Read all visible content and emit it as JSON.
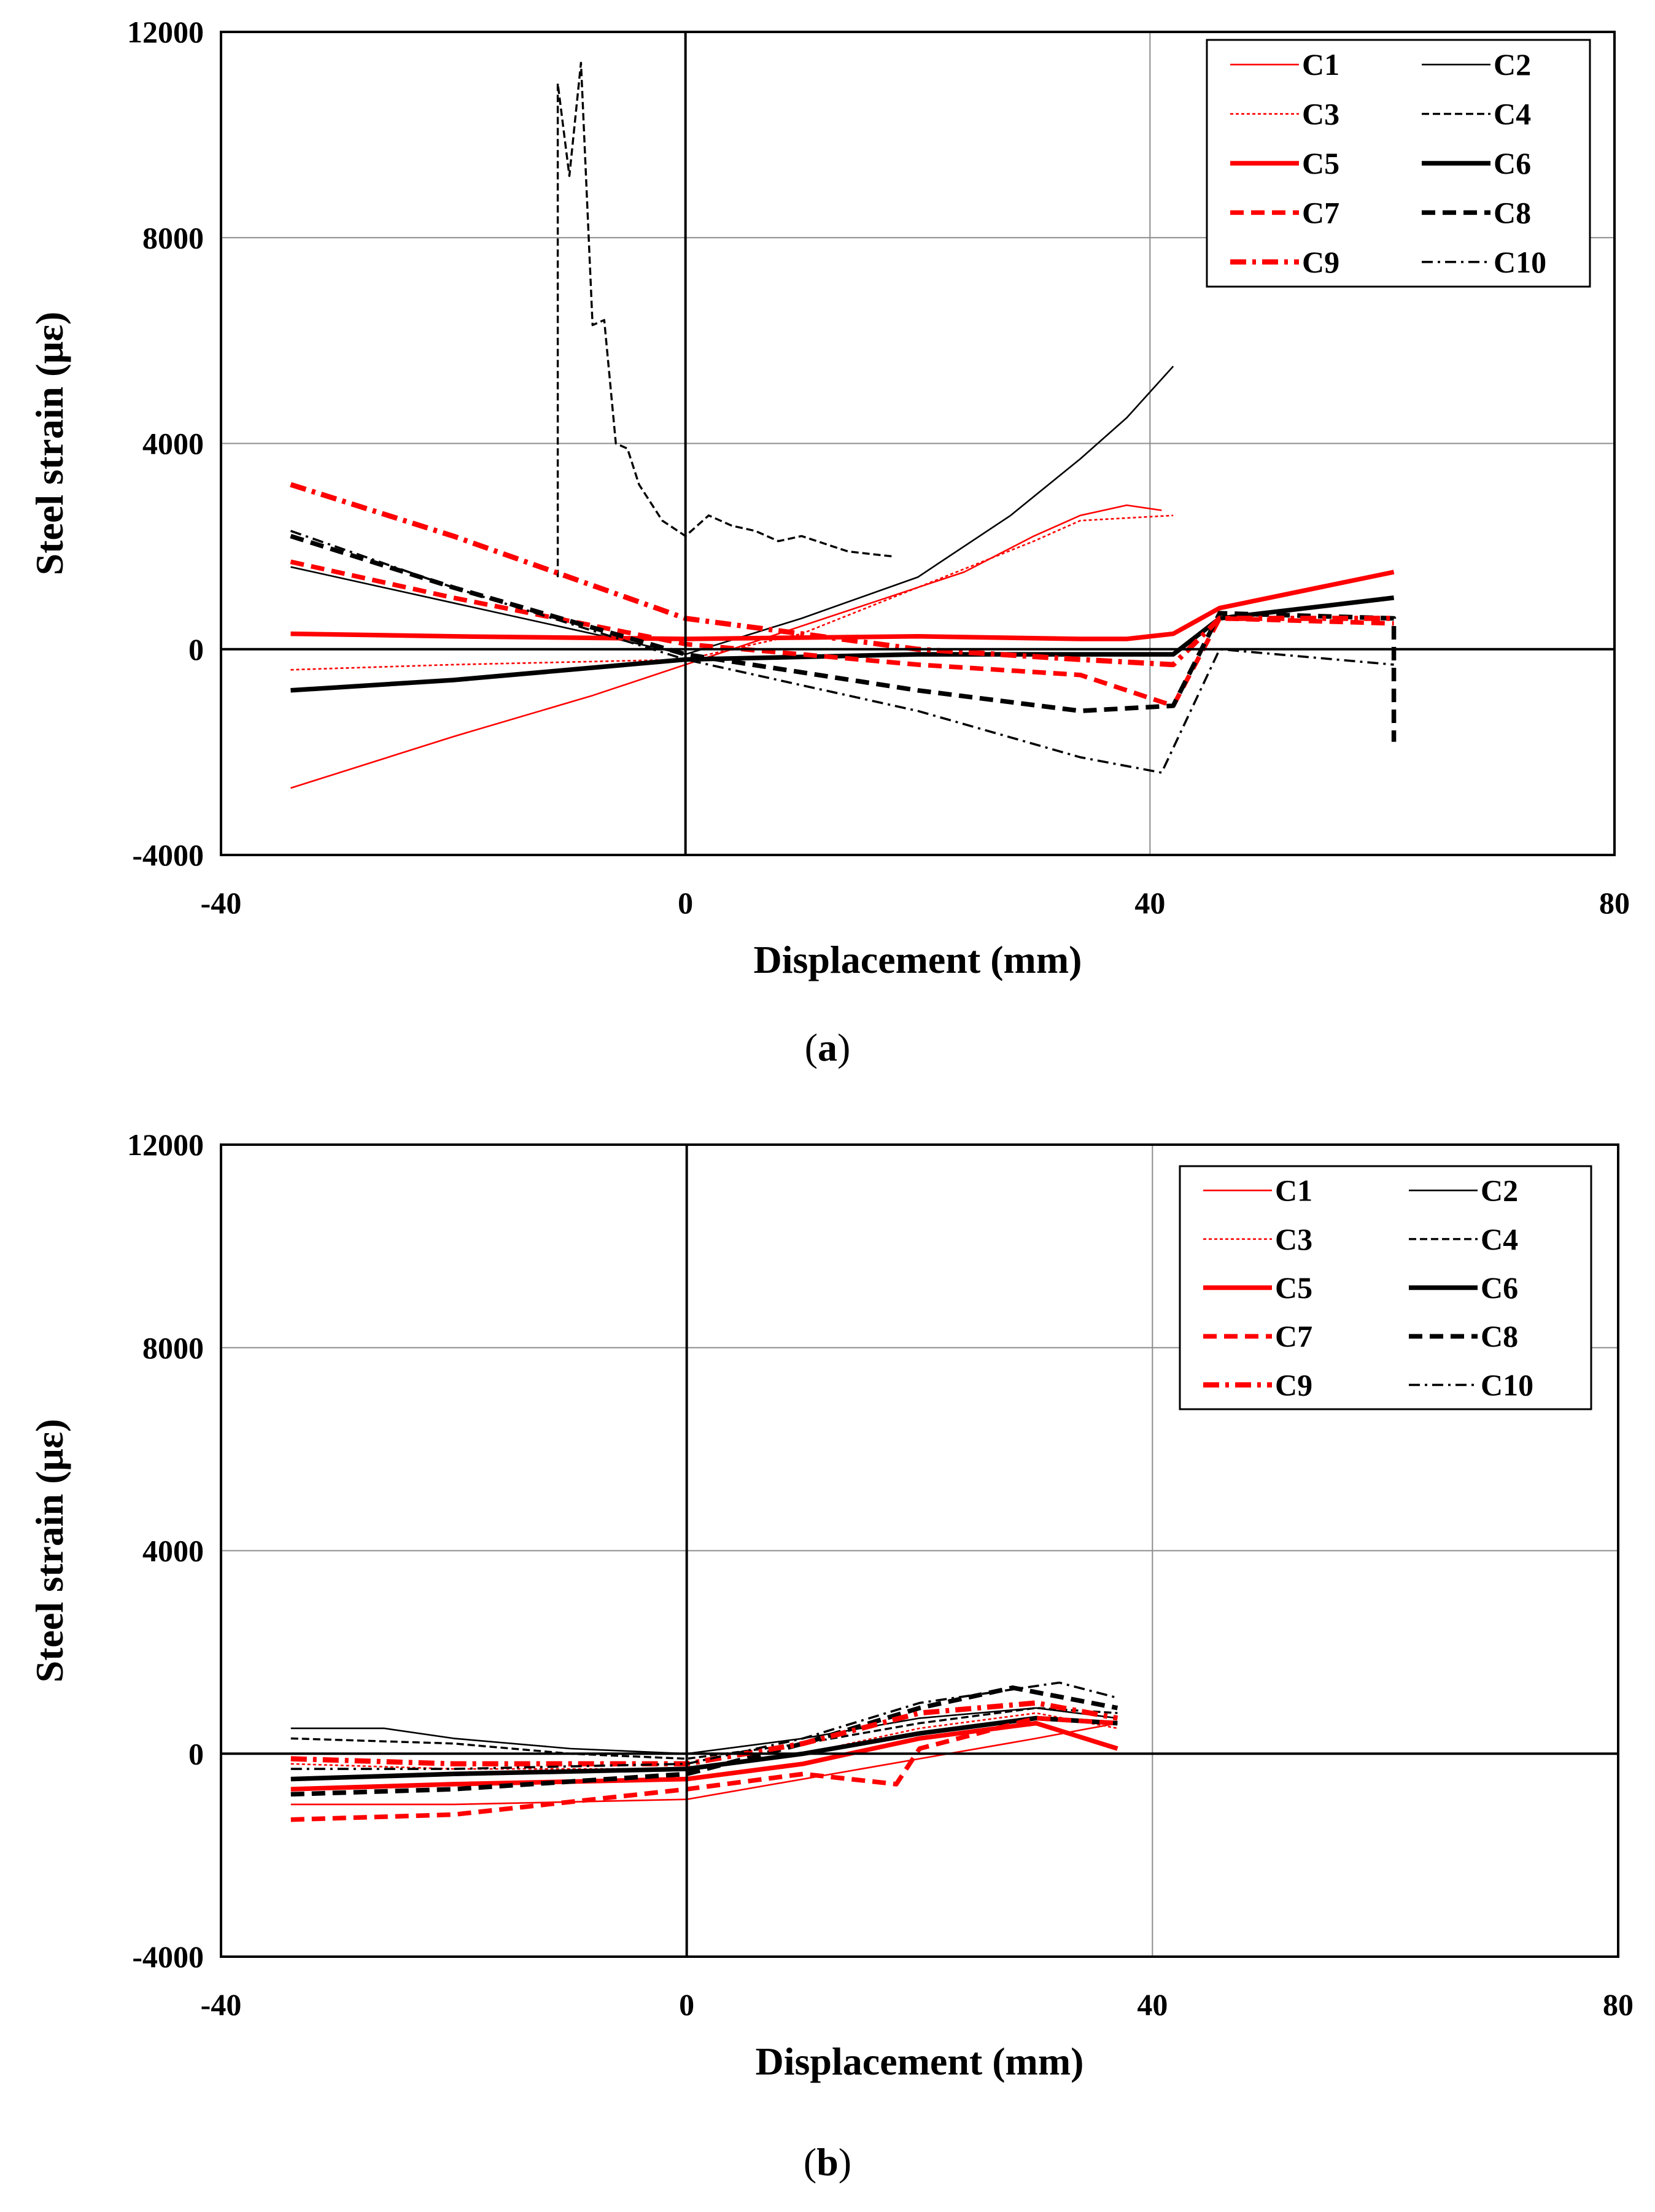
{
  "chart_data": [
    {
      "type": "line",
      "panel": "a",
      "caption_letter": "a",
      "xlabel": "Displacement  (mm)",
      "ylabel": "Steel strain  (με)",
      "xlim": [
        -40,
        80
      ],
      "ylim": [
        -4000,
        12000
      ],
      "xticks": [
        "-40",
        "0",
        "40",
        "80"
      ],
      "yticks": [
        "-4000",
        "0",
        "4000",
        "8000",
        "12000"
      ],
      "grid": true,
      "legend_position": "top-right",
      "series": [
        {
          "name": "C1",
          "color": "#ff0000",
          "style": "thin-solid",
          "points": [
            [
              -34,
              -2700
            ],
            [
              -20,
              -1700
            ],
            [
              -8,
              -900
            ],
            [
              0,
              -300
            ],
            [
              8,
              300
            ],
            [
              16,
              900
            ],
            [
              24,
              1500
            ],
            [
              30,
              2200
            ],
            [
              34,
              2600
            ],
            [
              38,
              2800
            ],
            [
              41,
              2700
            ]
          ]
        },
        {
          "name": "C2",
          "color": "#000000",
          "style": "thin-solid",
          "points": [
            [
              -34,
              1600
            ],
            [
              -20,
              900
            ],
            [
              -10,
              400
            ],
            [
              0,
              -100
            ],
            [
              10,
              600
            ],
            [
              20,
              1400
            ],
            [
              28,
              2600
            ],
            [
              34,
              3700
            ],
            [
              38,
              4500
            ],
            [
              42,
              5500
            ]
          ]
        },
        {
          "name": "C3",
          "color": "#ff0000",
          "style": "thin-dotted",
          "points": [
            [
              -34,
              -400
            ],
            [
              -20,
              -300
            ],
            [
              0,
              -200
            ],
            [
              10,
              300
            ],
            [
              20,
              1200
            ],
            [
              30,
              2100
            ],
            [
              34,
              2500
            ],
            [
              42,
              2600
            ]
          ]
        },
        {
          "name": "C4",
          "color": "#000000",
          "style": "thin-dashed",
          "points": [
            [
              -11,
              1400
            ],
            [
              -11,
              11000
            ],
            [
              -10,
              9200
            ],
            [
              -9,
              11400
            ],
            [
              -8,
              6300
            ],
            [
              -7,
              6400
            ],
            [
              -6,
              4000
            ],
            [
              -5,
              3900
            ],
            [
              -4,
              3200
            ],
            [
              -2,
              2500
            ],
            [
              0,
              2200
            ],
            [
              2,
              2600
            ],
            [
              4,
              2400
            ],
            [
              6,
              2300
            ],
            [
              8,
              2100
            ],
            [
              10,
              2200
            ],
            [
              14,
              1900
            ],
            [
              18,
              1800
            ]
          ]
        },
        {
          "name": "C5",
          "color": "#ff0000",
          "style": "thick-solid",
          "points": [
            [
              -34,
              300
            ],
            [
              -20,
              250
            ],
            [
              0,
              200
            ],
            [
              20,
              250
            ],
            [
              34,
              200
            ],
            [
              38,
              200
            ],
            [
              42,
              300
            ],
            [
              46,
              800
            ],
            [
              61,
              1500
            ]
          ]
        },
        {
          "name": "C6",
          "color": "#000000",
          "style": "thick-solid",
          "points": [
            [
              -34,
              -800
            ],
            [
              -20,
              -600
            ],
            [
              0,
              -200
            ],
            [
              20,
              -100
            ],
            [
              34,
              -100
            ],
            [
              42,
              -100
            ],
            [
              46,
              600
            ],
            [
              61,
              1000
            ]
          ]
        },
        {
          "name": "C7",
          "color": "#ff0000",
          "style": "thick-dashed",
          "points": [
            [
              -34,
              1700
            ],
            [
              -20,
              1000
            ],
            [
              0,
              100
            ],
            [
              20,
              -300
            ],
            [
              34,
              -500
            ],
            [
              42,
              -1100
            ],
            [
              46,
              600
            ],
            [
              61,
              500
            ]
          ]
        },
        {
          "name": "C8",
          "color": "#000000",
          "style": "thick-dashed",
          "points": [
            [
              -34,
              2200
            ],
            [
              -20,
              1200
            ],
            [
              0,
              -100
            ],
            [
              20,
              -800
            ],
            [
              34,
              -1200
            ],
            [
              42,
              -1100
            ],
            [
              46,
              700
            ],
            [
              61,
              600
            ],
            [
              61,
              -1800
            ]
          ]
        },
        {
          "name": "C9",
          "color": "#ff0000",
          "style": "thick-dashdot",
          "points": [
            [
              -34,
              3200
            ],
            [
              -20,
              2200
            ],
            [
              0,
              600
            ],
            [
              20,
              0
            ],
            [
              34,
              -200
            ],
            [
              42,
              -300
            ],
            [
              46,
              600
            ],
            [
              61,
              600
            ]
          ]
        },
        {
          "name": "C10",
          "color": "#000000",
          "style": "thin-dashdot",
          "points": [
            [
              -34,
              2300
            ],
            [
              -20,
              1200
            ],
            [
              0,
              -200
            ],
            [
              20,
              -1200
            ],
            [
              34,
              -2100
            ],
            [
              41,
              -2400
            ],
            [
              46,
              0
            ],
            [
              61,
              -300
            ]
          ]
        }
      ]
    },
    {
      "type": "line",
      "panel": "b",
      "caption_letter": "b",
      "xlabel": "Displacement  (mm)",
      "ylabel": "Steel strain  (με)",
      "xlim": [
        -40,
        80
      ],
      "ylim": [
        -4000,
        12000
      ],
      "xticks": [
        "-40",
        "0",
        "40",
        "80"
      ],
      "yticks": [
        "-4000",
        "0",
        "4000",
        "8000",
        "12000"
      ],
      "grid": true,
      "legend_position": "top-right",
      "series": [
        {
          "name": "C1",
          "color": "#ff0000",
          "style": "thin-solid",
          "points": [
            [
              -34,
              -1000
            ],
            [
              -20,
              -1000
            ],
            [
              0,
              -900
            ],
            [
              10,
              -500
            ],
            [
              20,
              -100
            ],
            [
              30,
              300
            ],
            [
              37,
              600
            ]
          ]
        },
        {
          "name": "C2",
          "color": "#000000",
          "style": "thin-solid",
          "points": [
            [
              -34,
              500
            ],
            [
              -26,
              500
            ],
            [
              -20,
              300
            ],
            [
              -10,
              100
            ],
            [
              0,
              0
            ],
            [
              10,
              300
            ],
            [
              20,
              700
            ],
            [
              30,
              900
            ],
            [
              37,
              700
            ]
          ]
        },
        {
          "name": "C3",
          "color": "#ff0000",
          "style": "thin-dotted",
          "points": [
            [
              -34,
              -200
            ],
            [
              -20,
              -300
            ],
            [
              0,
              -300
            ],
            [
              10,
              0
            ],
            [
              20,
              500
            ],
            [
              30,
              800
            ],
            [
              37,
              500
            ]
          ]
        },
        {
          "name": "C4",
          "color": "#000000",
          "style": "thin-dashed",
          "points": [
            [
              -34,
              300
            ],
            [
              -20,
              200
            ],
            [
              -10,
              0
            ],
            [
              0,
              -100
            ],
            [
              10,
              200
            ],
            [
              20,
              600
            ],
            [
              30,
              900
            ],
            [
              37,
              800
            ]
          ]
        },
        {
          "name": "C5",
          "color": "#ff0000",
          "style": "thick-solid",
          "points": [
            [
              -34,
              -700
            ],
            [
              -20,
              -600
            ],
            [
              0,
              -500
            ],
            [
              10,
              -200
            ],
            [
              20,
              300
            ],
            [
              30,
              600
            ],
            [
              37,
              100
            ]
          ]
        },
        {
          "name": "C6",
          "color": "#000000",
          "style": "thick-solid",
          "points": [
            [
              -34,
              -500
            ],
            [
              -20,
              -400
            ],
            [
              0,
              -300
            ],
            [
              10,
              0
            ],
            [
              20,
              400
            ],
            [
              30,
              700
            ],
            [
              37,
              600
            ]
          ]
        },
        {
          "name": "C7",
          "color": "#ff0000",
          "style": "thick-dashed",
          "points": [
            [
              -34,
              -1300
            ],
            [
              -20,
              -1200
            ],
            [
              0,
              -700
            ],
            [
              10,
              -400
            ],
            [
              18,
              -600
            ],
            [
              20,
              100
            ],
            [
              30,
              700
            ],
            [
              37,
              600
            ]
          ]
        },
        {
          "name": "C8",
          "color": "#000000",
          "style": "thick-dashed",
          "points": [
            [
              -34,
              -800
            ],
            [
              -20,
              -700
            ],
            [
              0,
              -400
            ],
            [
              10,
              200
            ],
            [
              20,
              900
            ],
            [
              28,
              1300
            ],
            [
              37,
              900
            ]
          ]
        },
        {
          "name": "C9",
          "color": "#ff0000",
          "style": "thick-dashdot",
          "points": [
            [
              -34,
              -100
            ],
            [
              -20,
              -200
            ],
            [
              0,
              -200
            ],
            [
              10,
              200
            ],
            [
              20,
              800
            ],
            [
              30,
              1000
            ],
            [
              37,
              700
            ]
          ]
        },
        {
          "name": "C10",
          "color": "#000000",
          "style": "thin-dashdot",
          "points": [
            [
              -34,
              -300
            ],
            [
              -20,
              -300
            ],
            [
              0,
              -200
            ],
            [
              10,
              300
            ],
            [
              20,
              1000
            ],
            [
              32,
              1400
            ],
            [
              37,
              1100
            ]
          ]
        }
      ]
    }
  ]
}
